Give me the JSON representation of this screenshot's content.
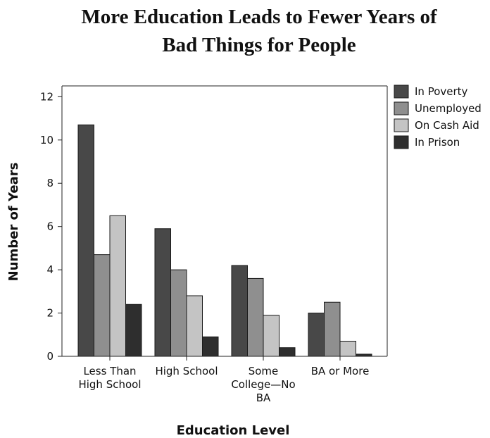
{
  "chart_data": {
    "type": "bar",
    "title_lines": [
      "More Education Leads to Fewer Years of",
      "Bad Things for People"
    ],
    "xlabel": "Education Level",
    "ylabel": "Number of Years",
    "ylim": [
      0,
      12.5
    ],
    "yticks": [
      "0",
      "2",
      "4",
      "6",
      "8",
      "10",
      "12"
    ],
    "categories": [
      [
        "Less Than",
        "High School"
      ],
      [
        "High School"
      ],
      [
        "Some",
        "College—No",
        "BA"
      ],
      [
        "BA or More"
      ]
    ],
    "series": [
      {
        "name": "In Poverty",
        "color": "#484848",
        "values": [
          10.7,
          5.9,
          4.2,
          2.0
        ]
      },
      {
        "name": "Unemployed",
        "color": "#8f8f8f",
        "values": [
          4.7,
          4.0,
          3.6,
          2.5
        ]
      },
      {
        "name": "On Cash Aid",
        "color": "#c4c4c4",
        "values": [
          6.5,
          2.8,
          1.9,
          0.7
        ]
      },
      {
        "name": "In Prison",
        "color": "#2e2e2e",
        "values": [
          2.4,
          0.9,
          0.4,
          0.1
        ]
      }
    ],
    "legend_position": "top-right",
    "grid": false
  }
}
